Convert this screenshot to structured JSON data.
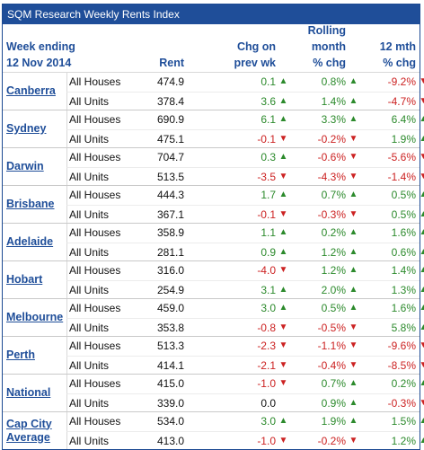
{
  "title": "SQM Research Weekly Rents Index",
  "headers": {
    "week_line1": "Week ending",
    "week_line2": "12 Nov 2014",
    "rent": "Rent",
    "chg_line1": "Chg on",
    "chg_line2": "prev wk",
    "roll_line1": "Rolling",
    "roll_line2": "month",
    "roll_line3": "% chg",
    "mth_line1": "12 mth",
    "mth_line2": "% chg"
  },
  "groups": [
    {
      "city": "Canberra",
      "rows": [
        {
          "type": "All Houses",
          "rent": "474.9",
          "chg": "0.1",
          "chg_dir": "up",
          "roll": "0.8%",
          "roll_dir": "up",
          "mth": "-9.2%",
          "mth_dir": "down"
        },
        {
          "type": "All Units",
          "rent": "378.4",
          "chg": "3.6",
          "chg_dir": "up",
          "roll": "1.4%",
          "roll_dir": "up",
          "mth": "-4.7%",
          "mth_dir": "down"
        }
      ]
    },
    {
      "city": "Sydney",
      "rows": [
        {
          "type": "All Houses",
          "rent": "690.9",
          "chg": "6.1",
          "chg_dir": "up",
          "roll": "3.3%",
          "roll_dir": "up",
          "mth": "6.4%",
          "mth_dir": "up"
        },
        {
          "type": "All Units",
          "rent": "475.1",
          "chg": "-0.1",
          "chg_dir": "down",
          "roll": "-0.2%",
          "roll_dir": "down",
          "mth": "1.9%",
          "mth_dir": "up"
        }
      ]
    },
    {
      "city": "Darwin",
      "rows": [
        {
          "type": "All Houses",
          "rent": "704.7",
          "chg": "0.3",
          "chg_dir": "up",
          "roll": "-0.6%",
          "roll_dir": "down",
          "mth": "-5.6%",
          "mth_dir": "down"
        },
        {
          "type": "All Units",
          "rent": "513.5",
          "chg": "-3.5",
          "chg_dir": "down",
          "roll": "-4.3%",
          "roll_dir": "down",
          "mth": "-1.4%",
          "mth_dir": "down"
        }
      ]
    },
    {
      "city": "Brisbane",
      "rows": [
        {
          "type": "All Houses",
          "rent": "444.3",
          "chg": "1.7",
          "chg_dir": "up",
          "roll": "0.7%",
          "roll_dir": "up",
          "mth": "0.5%",
          "mth_dir": "up"
        },
        {
          "type": "All Units",
          "rent": "367.1",
          "chg": "-0.1",
          "chg_dir": "down",
          "roll": "-0.3%",
          "roll_dir": "down",
          "mth": "0.5%",
          "mth_dir": "up"
        }
      ]
    },
    {
      "city": "Adelaide",
      "rows": [
        {
          "type": "All Houses",
          "rent": "358.9",
          "chg": "1.1",
          "chg_dir": "up",
          "roll": "0.2%",
          "roll_dir": "up",
          "mth": "1.6%",
          "mth_dir": "up"
        },
        {
          "type": "All Units",
          "rent": "281.1",
          "chg": "0.9",
          "chg_dir": "up",
          "roll": "1.2%",
          "roll_dir": "up",
          "mth": "0.6%",
          "mth_dir": "up"
        }
      ]
    },
    {
      "city": "Hobart",
      "rows": [
        {
          "type": "All Houses",
          "rent": "316.0",
          "chg": "-4.0",
          "chg_dir": "down",
          "roll": "1.2%",
          "roll_dir": "up",
          "mth": "1.4%",
          "mth_dir": "up"
        },
        {
          "type": "All Units",
          "rent": "254.9",
          "chg": "3.1",
          "chg_dir": "up",
          "roll": "2.0%",
          "roll_dir": "up",
          "mth": "1.3%",
          "mth_dir": "up"
        }
      ]
    },
    {
      "city": "Melbourne",
      "rows": [
        {
          "type": "All Houses",
          "rent": "459.0",
          "chg": "3.0",
          "chg_dir": "up",
          "roll": "0.5%",
          "roll_dir": "up",
          "mth": "1.6%",
          "mth_dir": "up"
        },
        {
          "type": "All Units",
          "rent": "353.8",
          "chg": "-0.8",
          "chg_dir": "down",
          "roll": "-0.5%",
          "roll_dir": "down",
          "mth": "5.8%",
          "mth_dir": "up"
        }
      ]
    },
    {
      "city": "Perth",
      "rows": [
        {
          "type": "All Houses",
          "rent": "513.3",
          "chg": "-2.3",
          "chg_dir": "down",
          "roll": "-1.1%",
          "roll_dir": "down",
          "mth": "-9.6%",
          "mth_dir": "down"
        },
        {
          "type": "All Units",
          "rent": "414.1",
          "chg": "-2.1",
          "chg_dir": "down",
          "roll": "-0.4%",
          "roll_dir": "down",
          "mth": "-8.5%",
          "mth_dir": "down"
        }
      ]
    },
    {
      "city": "National",
      "rows": [
        {
          "type": "All Houses",
          "rent": "415.0",
          "chg": "-1.0",
          "chg_dir": "down",
          "roll": "0.7%",
          "roll_dir": "up",
          "mth": "0.2%",
          "mth_dir": "up"
        },
        {
          "type": "All Units",
          "rent": "339.0",
          "chg": "0.0",
          "chg_dir": "none",
          "roll": "0.9%",
          "roll_dir": "up",
          "mth": "-0.3%",
          "mth_dir": "down"
        }
      ]
    },
    {
      "city": "Cap City Average",
      "rows": [
        {
          "type": "All Houses",
          "rent": "534.0",
          "chg": "3.0",
          "chg_dir": "up",
          "roll": "1.9%",
          "roll_dir": "up",
          "mth": "1.5%",
          "mth_dir": "up"
        },
        {
          "type": "All Units",
          "rent": "413.0",
          "chg": "-1.0",
          "chg_dir": "down",
          "roll": "-0.2%",
          "roll_dir": "down",
          "mth": "1.2%",
          "mth_dir": "up"
        }
      ]
    }
  ],
  "colors": {
    "header_bg": "#1f4e99",
    "positive": "#2c8a2c",
    "negative": "#cc2222"
  }
}
